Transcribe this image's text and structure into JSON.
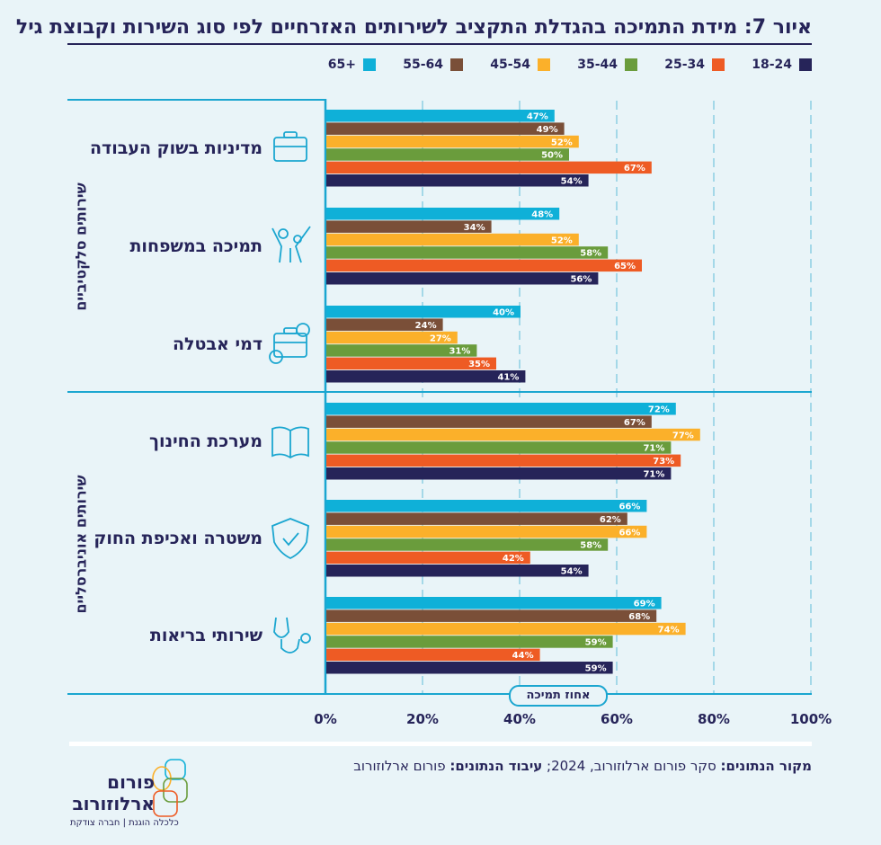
{
  "title": "איור 7: מידת התמיכה בהגדלת התקציב לשירותים האזרחיים לפי סוג השירות וקבוצת גיל",
  "chart_data": {
    "type": "bar",
    "orientation": "horizontal",
    "categories": [
      "מדיניות בשוק העבודה",
      "תמיכה במשפחות",
      "דמי אבטלה",
      "מערכת החינוך",
      "משטרה ואכיפת החוק",
      "שירותי בריאות"
    ],
    "groups": [
      {
        "label": "שירותים סלקטיביים",
        "categories": [
          0,
          1,
          2
        ]
      },
      {
        "label": "שירותים אוניברסליים",
        "categories": [
          3,
          4,
          5
        ]
      }
    ],
    "series": [
      {
        "name": "65+",
        "color": "#0fb0d8",
        "values": [
          47,
          48,
          40,
          72,
          66,
          69
        ]
      },
      {
        "name": "55-64",
        "color": "#7a4f38",
        "values": [
          49,
          34,
          24,
          67,
          62,
          68
        ]
      },
      {
        "name": "45-54",
        "color": "#fbb02a",
        "values": [
          52,
          52,
          27,
          77,
          66,
          74
        ]
      },
      {
        "name": "35-44",
        "color": "#6a9c3c",
        "values": [
          50,
          58,
          31,
          71,
          58,
          59
        ]
      },
      {
        "name": "25-34",
        "color": "#ee5b24",
        "values": [
          67,
          65,
          35,
          73,
          42,
          44
        ]
      },
      {
        "name": "18-24",
        "color": "#262459",
        "values": [
          54,
          56,
          41,
          71,
          54,
          59
        ]
      }
    ],
    "xlabel": "אחוז תמיכה",
    "xlim": [
      0,
      100
    ],
    "xticks": [
      "0%",
      "20%",
      "40%",
      "60%",
      "80%",
      "100%"
    ],
    "grid": true,
    "legend": "top",
    "icons": [
      "briefcase-icon",
      "family-icon",
      "unemployment-briefcase-icon",
      "book-icon",
      "shield-check-icon",
      "stethoscope-icon"
    ]
  },
  "footer": {
    "source_label": "מקור הנתונים:",
    "source_text": " סקר פורום ארלוזורוב, 2024; ",
    "processing_label": "עיבוד הנתונים:",
    "processing_text": " פורום ארלוזורוב"
  },
  "logo": {
    "line1": "פורום",
    "line2": "ארלוזורוב",
    "tagline": "כלכלה הוגנת | חברה צודקת"
  },
  "colors": {
    "background": "#e9f4f8",
    "frame": "#1ba6d0",
    "text": "#262459"
  }
}
